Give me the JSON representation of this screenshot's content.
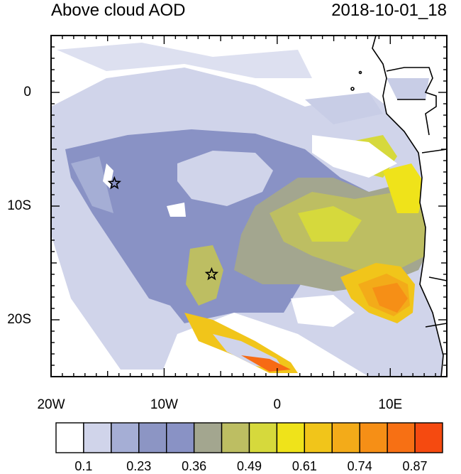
{
  "title_left": "Above cloud AOD",
  "title_right": "2018-10-01_18",
  "lat_ticks": [
    {
      "label": "0",
      "value": 0
    },
    {
      "label": "10S",
      "value": -10
    },
    {
      "label": "20S",
      "value": -20
    }
  ],
  "lon_ticks": [
    {
      "label": "20W",
      "value": -20
    },
    {
      "label": "10W",
      "value": -10
    },
    {
      "label": "0",
      "value": 0
    },
    {
      "label": "10E",
      "value": 10
    }
  ],
  "map_extent": {
    "lon": [
      -20,
      15
    ],
    "lat": [
      -25,
      5
    ]
  },
  "colorbar": {
    "colors": [
      "#ffffff",
      "#d0d4ea",
      "#a5aed5",
      "#8c95c4",
      "#8992c5",
      "#a3a68f",
      "#bdbe62",
      "#d6d93c",
      "#efe31a",
      "#f1c51a",
      "#f3ab19",
      "#f68f16",
      "#f77014",
      "#f54a10"
    ],
    "labels": [
      "0.1",
      "0.23",
      "0.36",
      "0.49",
      "0.61",
      "0.74",
      "0.87"
    ]
  },
  "markers": [
    {
      "name": "star-1",
      "lon": -14.4,
      "lat": -8.0
    },
    {
      "name": "star-2",
      "lon": -5.8,
      "lat": -16.0
    }
  ]
}
